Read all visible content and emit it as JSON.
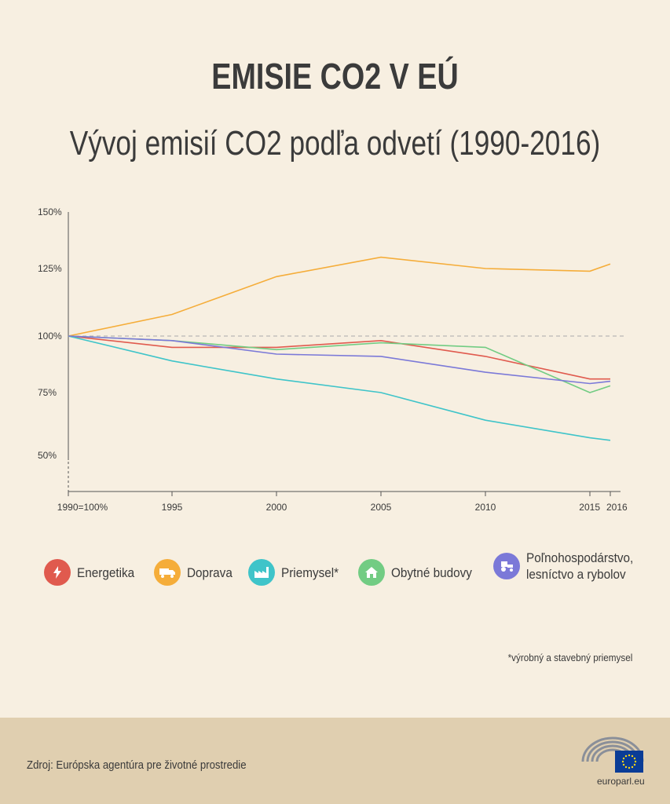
{
  "title": "EMISIE CO2 V EÚ",
  "subtitle": "Vývoj emisií CO2 podľa odvetí (1990-2016)",
  "chart_data": {
    "type": "line",
    "x": [
      1990,
      1995,
      2000,
      2005,
      2010,
      2015,
      2016
    ],
    "x_tick_labels": [
      "1990=100%",
      "1995",
      "2000",
      "2005",
      "2010",
      "2015",
      "2016"
    ],
    "y_tick_labels": [
      "150%",
      "125%",
      "100%",
      "75%",
      "50%"
    ],
    "y_ticks": [
      150,
      125,
      100,
      75,
      50
    ],
    "ylim": [
      40,
      150
    ],
    "reference_line": 100,
    "series": [
      {
        "name": "Energetika",
        "color": "#e05a4e",
        "values": [
          100,
          95,
          95,
          98,
          91,
          81,
          81
        ]
      },
      {
        "name": "Doprava",
        "color": "#f5ad3a",
        "values": [
          100,
          108,
          122,
          130,
          125,
          124,
          127
        ]
      },
      {
        "name": "Priemysel*",
        "color": "#3fc4c9",
        "values": [
          100,
          89,
          81,
          75,
          64,
          57,
          56
        ]
      },
      {
        "name": "Obytné budovy",
        "color": "#72cc83",
        "values": [
          100,
          98,
          94,
          97,
          95,
          75,
          78
        ]
      },
      {
        "name": "Poľnohospodárstvo, lesníctvo a rybolov",
        "color": "#7b79d8",
        "values": [
          100,
          98,
          92,
          91,
          84,
          79,
          80
        ]
      }
    ]
  },
  "legend": [
    {
      "label": "Energetika",
      "icon": "lightning-icon",
      "color": "#e05a4e"
    },
    {
      "label": "Doprava",
      "icon": "truck-icon",
      "color": "#f5ad3a"
    },
    {
      "label": "Priemysel*",
      "icon": "factory-icon",
      "color": "#3fc4c9"
    },
    {
      "label": "Obytné budovy",
      "icon": "house-icon",
      "color": "#72cc83"
    },
    {
      "label_line1": "Poľnohospodárstvo,",
      "label_line2": "lesníctvo a rybolov",
      "icon": "tractor-icon",
      "color": "#7b79d8"
    }
  ],
  "footnote": "*výrobný a stavebný priemysel",
  "source": "Zdroj: Európska agentúra pre životné prostredie",
  "site": "europarl.eu"
}
